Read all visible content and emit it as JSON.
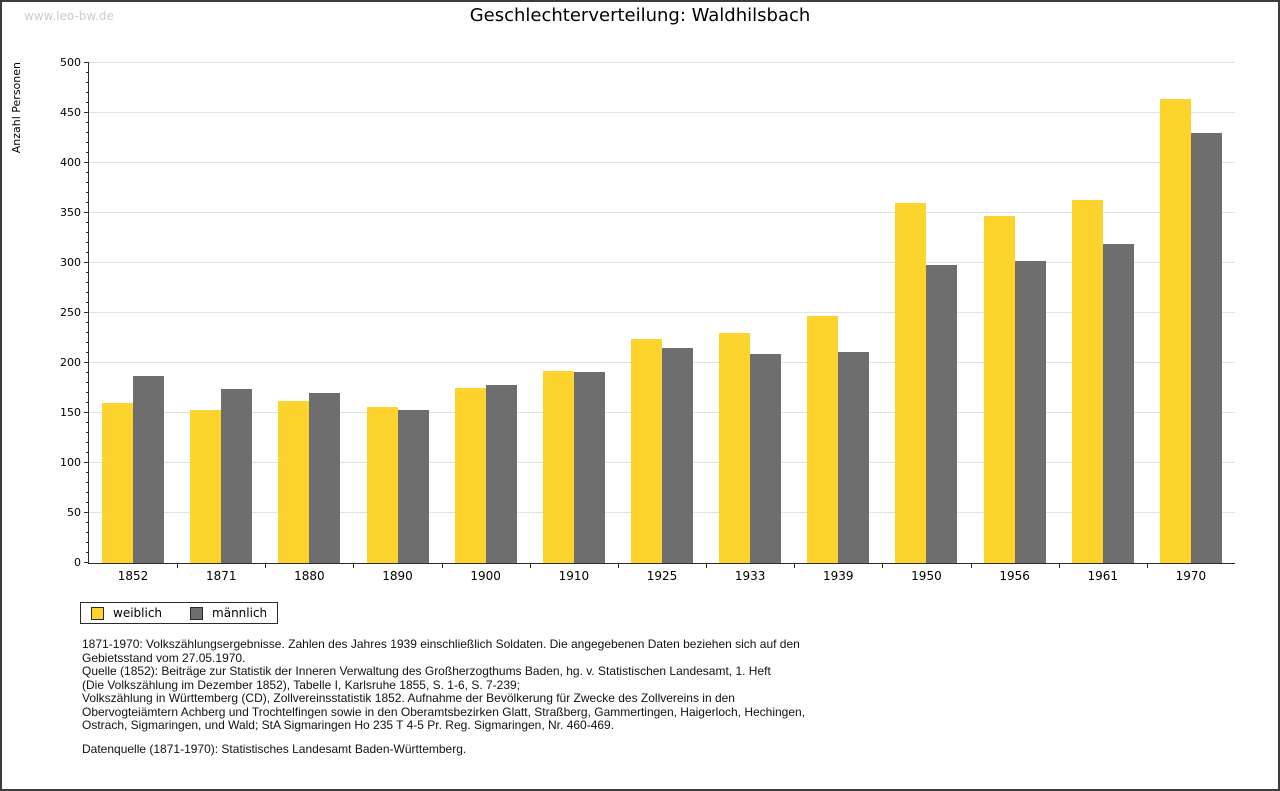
{
  "page": {
    "watermark": "www.leo-bw.de",
    "title": "Geschlechterverteilung: Waldhilsbach"
  },
  "chart_data": {
    "type": "bar",
    "title": "Geschlechterverteilung: Waldhilsbach",
    "xlabel": "",
    "ylabel": "Anzahl Personen",
    "ylim": [
      0,
      500
    ],
    "ytick_step": 50,
    "ytick_minor_step": 10,
    "grid": true,
    "legend_position": "bottom-left",
    "categories": [
      "1852",
      "1871",
      "1880",
      "1890",
      "1900",
      "1910",
      "1925",
      "1933",
      "1939",
      "1950",
      "1956",
      "1961",
      "1970"
    ],
    "series": [
      {
        "name": "weiblich",
        "color": "#fdd32e",
        "values": [
          160,
          153,
          162,
          156,
          175,
          192,
          224,
          230,
          247,
          360,
          347,
          363,
          464
        ]
      },
      {
        "name": "männlich",
        "color": "#6e6e6e",
        "values": [
          187,
          174,
          170,
          153,
          178,
          191,
          215,
          209,
          211,
          298,
          302,
          319,
          430
        ]
      }
    ]
  },
  "footnotes": {
    "lines": [
      "1871-1970: Volkszählungsergebnisse. Zahlen des Jahres 1939 einschließlich Soldaten. Die angegebenen Daten beziehen sich auf den",
      "Gebietsstand vom 27.05.1970.",
      "Quelle (1852): Beiträge zur Statistik der Inneren Verwaltung des Großherzogthums Baden, hg. v. Statistischen Landesamt, 1. Heft",
      "(Die Volkszählung im Dezember 1852), Tabelle I, Karlsruhe 1855, S. 1-6, S. 7-239;",
      "Volkszählung in Württemberg (CD), Zollvereinsstatistik 1852. Aufnahme der Bevölkerung für Zwecke des Zollvereins in den",
      "Obervogteiämtern Achberg und Trochtelfingen sowie in den Oberamtsbezirken Glatt, Straßberg, Gammertingen, Haigerloch, Hechingen,",
      "Ostrach, Sigmaringen, und Wald; StA Sigmaringen Ho 235 T 4-5 Pr. Reg. Sigmaringen, Nr. 460-469."
    ],
    "datasource": "Datenquelle (1871-1970): Statistisches Landesamt Baden-Württemberg."
  }
}
